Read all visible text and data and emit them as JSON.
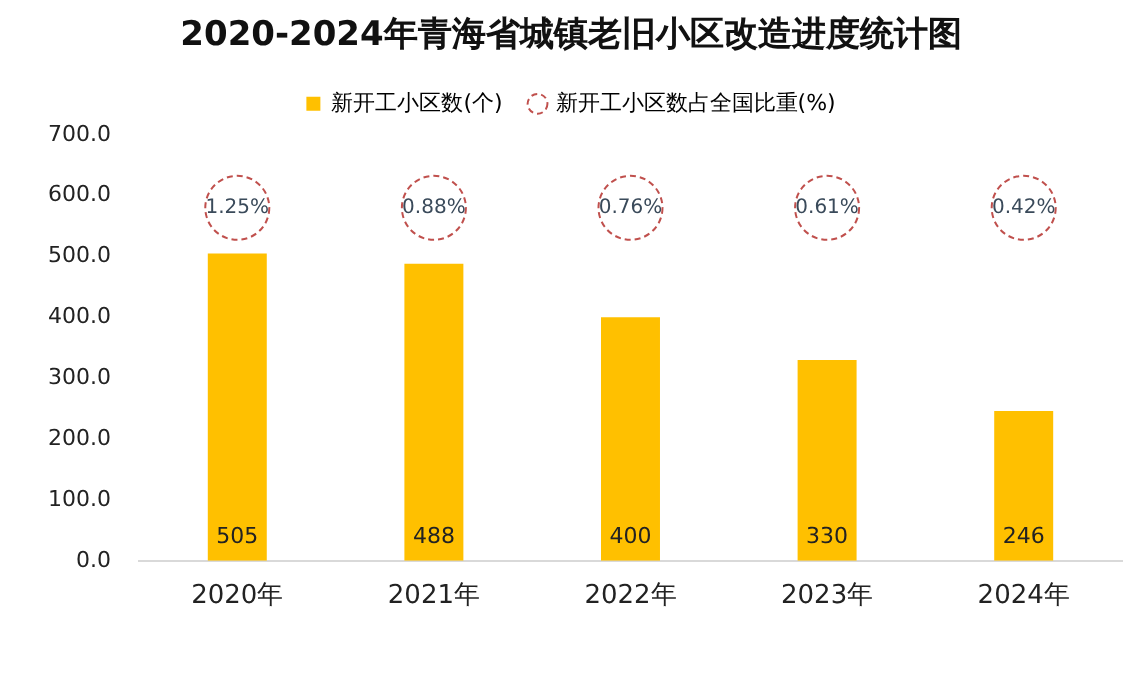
{
  "chart_data": {
    "type": "bar",
    "title": "2020-2024年青海省城镇老旧小区改造进度统计图",
    "categories": [
      "2020年",
      "2021年",
      "2022年",
      "2023年",
      "2024年"
    ],
    "series": [
      {
        "name": "新开工小区数(个)",
        "color": "#ffc000",
        "values": [
          505,
          488,
          400,
          330,
          246
        ]
      },
      {
        "name": "新开工小区数占全国比重(%)",
        "type": "scatter",
        "marker": "circle",
        "line_style": "dashed",
        "color": "#c0504d",
        "values": [
          null,
          null,
          null,
          null,
          null
        ]
      }
    ],
    "data_labels": true,
    "annotations": [
      {
        "text": "1.25%",
        "x": "2020年",
        "y": 580
      },
      {
        "text": "0.88%",
        "x": "2021年",
        "y": 580
      },
      {
        "text": "0.76%",
        "x": "2022年",
        "y": 580
      },
      {
        "text": "0.61%",
        "x": "2023年",
        "y": 580
      },
      {
        "text": "0.42%",
        "x": "2024年",
        "y": 580
      }
    ],
    "ylim": [
      0,
      700
    ],
    "yticks": [
      {
        "value": 0,
        "label": "0.0"
      },
      {
        "value": 100,
        "label": "100.0"
      },
      {
        "value": 200,
        "label": "200.0"
      },
      {
        "value": 300,
        "label": "300.0"
      },
      {
        "value": 400,
        "label": "400.0"
      },
      {
        "value": 500,
        "label": "500.0"
      },
      {
        "value": 600,
        "label": "600.0"
      },
      {
        "value": 700,
        "label": "700.0"
      }
    ],
    "grid": false,
    "legend": "top"
  }
}
